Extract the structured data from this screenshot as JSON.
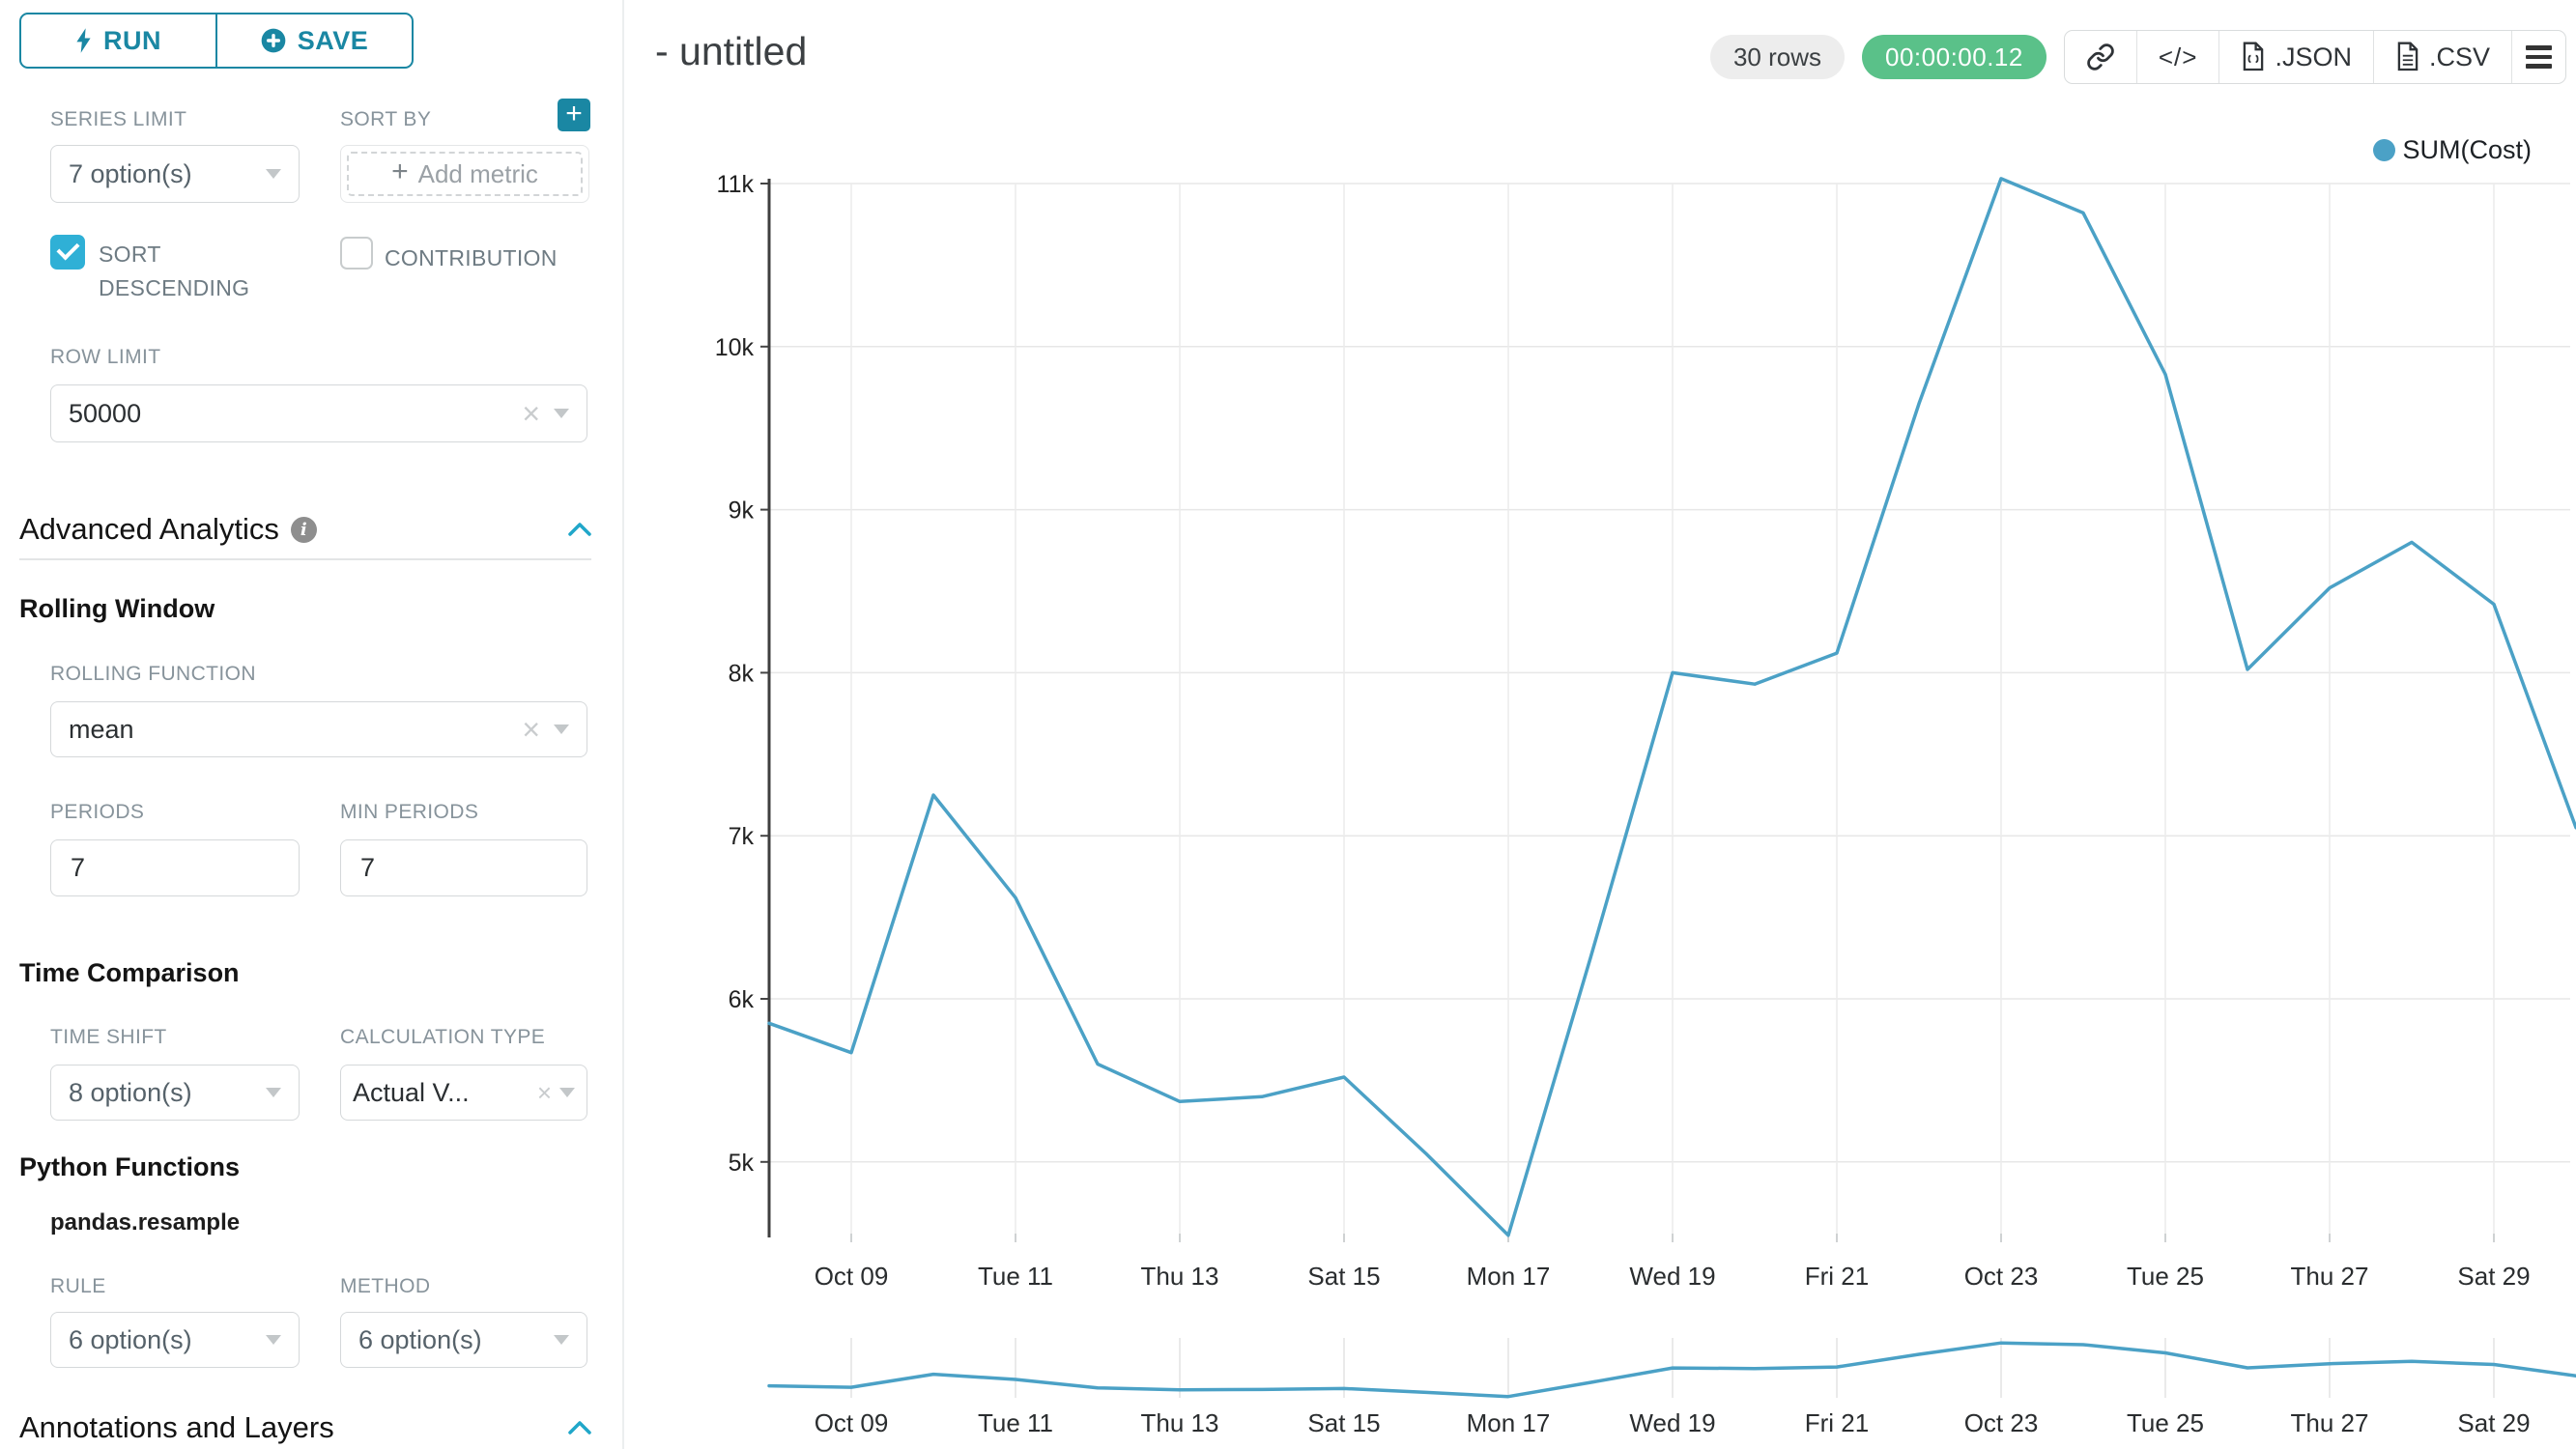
{
  "sidebar": {
    "run_button": {
      "label": "RUN"
    },
    "save_button": {
      "label": "SAVE"
    },
    "series_limit": {
      "label": "SERIES LIMIT",
      "value": "7 option(s)"
    },
    "sort_by": {
      "label": "SORT BY",
      "placeholder": "Add metric"
    },
    "sort_descending": {
      "label": "SORT DESCENDING",
      "checked": true
    },
    "contribution": {
      "label": "CONTRIBUTION",
      "checked": false
    },
    "row_limit": {
      "label": "ROW LIMIT",
      "value": "50000"
    },
    "advanced_analytics": {
      "title": "Advanced Analytics"
    },
    "rolling_window": {
      "title": "Rolling Window",
      "function_label": "ROLLING FUNCTION",
      "function_value": "mean",
      "periods_label": "PERIODS",
      "periods_value": "7",
      "min_periods_label": "MIN PERIODS",
      "min_periods_value": "7"
    },
    "time_comparison": {
      "title": "Time Comparison",
      "time_shift_label": "TIME SHIFT",
      "time_shift_value": "8 option(s)",
      "calculation_type_label": "CALCULATION TYPE",
      "calculation_type_value": "Actual V..."
    },
    "python_functions": {
      "title": "Python Functions",
      "subtitle": "pandas.resample",
      "rule_label": "RULE",
      "rule_value": "6 option(s)",
      "method_label": "METHOD",
      "method_value": "6 option(s)"
    },
    "annotations": {
      "title": "Annotations and Layers"
    }
  },
  "header": {
    "title": "- untitled",
    "row_count_badge": "30 rows",
    "duration_badge": "00:00:00.12",
    "code_glyph": "</>",
    "json_label": ".JSON",
    "csv_label": ".CSV"
  },
  "colors": {
    "accent_teal": "#1a87a3",
    "checkbox_teal": "#2fb0d6",
    "collapse_chevron_teal": "#20a7c9",
    "success_green": "#5ac189",
    "line_blue": "#4ba1c6"
  },
  "chart_data": {
    "type": "line",
    "title": "- untitled",
    "grid": true,
    "legend_position": "top-right",
    "x_axis": {
      "tick_labels": [
        "Oct 09",
        "Tue 11",
        "Thu 13",
        "Sat 15",
        "Mon 17",
        "Wed 19",
        "Fri 21",
        "Oct 23",
        "Tue 25",
        "Thu 27",
        "Sat 29"
      ],
      "first_tick_point_index": 1,
      "tick_interval_points": 2,
      "point_interval": "1 day"
    },
    "y_axis": {
      "tick_labels": [
        "5k",
        "6k",
        "7k",
        "8k",
        "9k",
        "10k",
        "11k"
      ],
      "tick_values": [
        5000,
        6000,
        7000,
        8000,
        9000,
        10000,
        11000
      ],
      "rendered_min": 4400,
      "rendered_max": 11100
    },
    "series": [
      {
        "name": "SUM(Cost)",
        "color": "#4ba1c6",
        "values": [
          5850,
          5670,
          7250,
          6620,
          5600,
          5370,
          5400,
          5520,
          5050,
          4550,
          6250,
          8000,
          7930,
          8120,
          9650,
          11030,
          10820,
          9830,
          8020,
          8520,
          8800,
          8420,
          7050
        ]
      }
    ],
    "mini_chart": {
      "description": "compressed overview of same series below main chart"
    }
  }
}
